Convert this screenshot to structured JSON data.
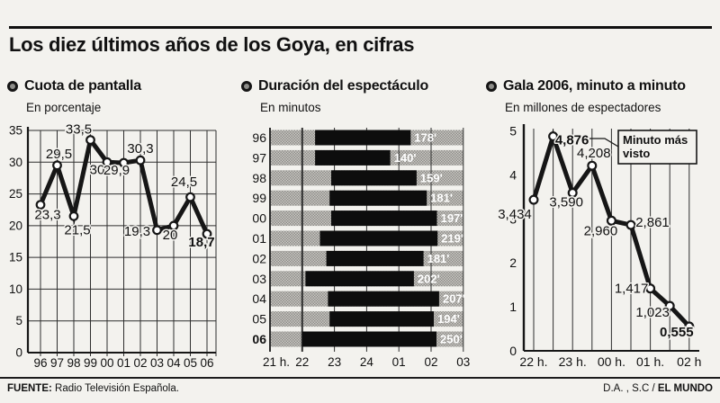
{
  "header": {
    "title": "Los diez últimos años de los Goya, en cifras"
  },
  "footer": {
    "source_label": "FUENTE:",
    "source_text": "Radio Televisión Española.",
    "credit_prefix": "D.A. , S.C /",
    "credit_brand": "EL MUNDO"
  },
  "colors": {
    "paper": "#f3f2ee",
    "ink": "#161616",
    "grid": "#2e2e2e",
    "bar_black": "#0d0d0d",
    "halftone_light": "#c9c8c3",
    "halftone_dark": "#8e8d89",
    "marker_fill": "#ffffff"
  },
  "chart_data": [
    {
      "id": "cuota",
      "type": "line",
      "title": "Cuota de pantalla",
      "subtitle": "En porcentaje",
      "categories": [
        "96",
        "97",
        "98",
        "99",
        "00",
        "01",
        "02",
        "03",
        "04",
        "05",
        "06"
      ],
      "values": [
        23.3,
        29.5,
        21.5,
        33.5,
        30,
        29.9,
        30.3,
        19.3,
        20,
        24.5,
        18.7
      ],
      "point_labels": [
        "23,3",
        "29,5",
        "21,5",
        "33,5",
        "30",
        "29,9",
        "30,3",
        "19,3",
        "20",
        "24,5",
        "18,7"
      ],
      "bold_point_indices": [
        10
      ],
      "ylim": [
        0,
        35
      ],
      "yticks": [
        0,
        5,
        10,
        15,
        20,
        25,
        30,
        35
      ],
      "grid": true
    },
    {
      "id": "duracion",
      "type": "bar-horizontal-span",
      "title": "Duración del espectáculo",
      "subtitle": "En minutos",
      "categories": [
        "96",
        "97",
        "98",
        "99",
        "00",
        "01",
        "02",
        "03",
        "04",
        "05",
        "06"
      ],
      "bold_category_indices": [
        10
      ],
      "durations_min": [
        178,
        140,
        159,
        181,
        197,
        219,
        181,
        202,
        207,
        194,
        250
      ],
      "bar_labels": [
        "178'",
        "140'",
        "159'",
        "181'",
        "197'",
        "219'",
        "181'",
        "202'",
        "207'",
        "194'",
        "250'"
      ],
      "start_hours": [
        22.4,
        22.4,
        22.9,
        22.85,
        22.9,
        22.55,
        22.75,
        22.1,
        22.8,
        22.85,
        22.0
      ],
      "x_tick_hours": [
        21,
        22,
        23,
        24,
        25,
        26,
        27
      ],
      "x_tick_labels": [
        "21 h.",
        "22",
        "23",
        "24",
        "01",
        "02",
        "03"
      ]
    },
    {
      "id": "gala",
      "type": "line",
      "title": "Gala 2006, minuto a minuto",
      "subtitle": "En millones de espectadores",
      "x_half_hours": [
        22,
        22.5,
        23,
        23.5,
        24,
        24.5,
        25,
        25.5,
        26
      ],
      "x_tick_labels": [
        "22 h.",
        "23 h.",
        "00 h.",
        "01 h.",
        "02 h"
      ],
      "values": [
        3.434,
        4.876,
        3.59,
        4.208,
        2.96,
        2.861,
        1.417,
        1.023,
        0.555
      ],
      "point_labels": [
        "3,434",
        "4,876",
        "3,590",
        "4,208",
        "2,960",
        "2,861",
        "1,417",
        "1,023",
        "0,555"
      ],
      "bold_point_indices": [
        1,
        8
      ],
      "ylim": [
        0,
        5
      ],
      "yticks": [
        0,
        1,
        2,
        3,
        4,
        5
      ],
      "annotation": {
        "text": "Minuto más visto",
        "line1": "Minuto más",
        "line2": "visto",
        "target_label": "4,876"
      }
    }
  ]
}
